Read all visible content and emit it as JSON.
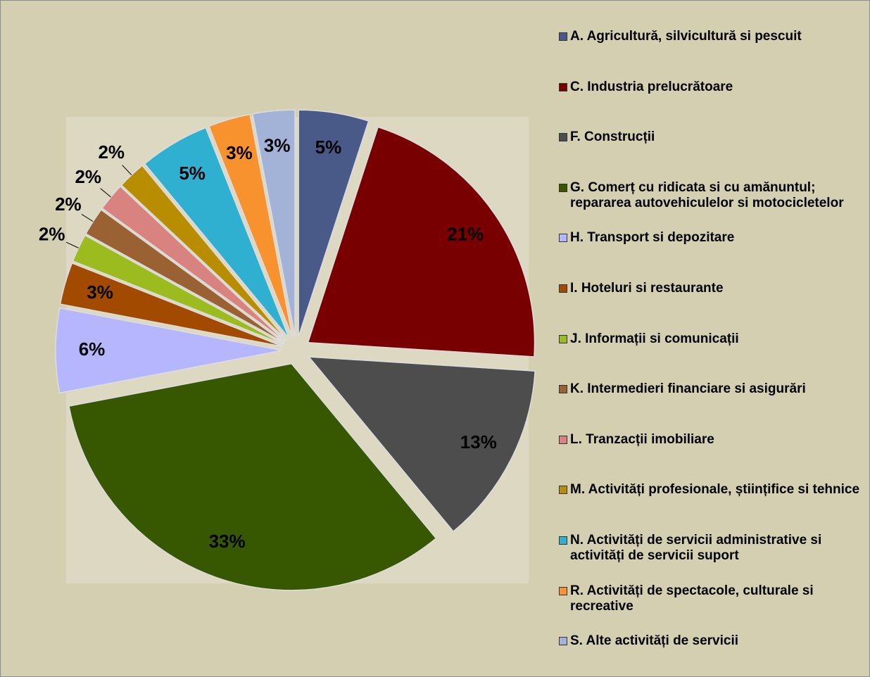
{
  "chart_data": {
    "type": "pie",
    "categories": [
      "A. Agricultură, silvicultură si pescuit",
      "C. Industria prelucrătoare",
      "F. Construcții",
      "G. Comerț cu ridicata si cu amănuntul; repararea autovehiculelor si motocicletelor",
      "H. Transport si depozitare",
      "I. Hoteluri si restaurante",
      "J. Informații si comunicații",
      "K. Intermedieri financiare si asigurări",
      "L. Tranzacții imobiliare",
      "M. Activități profesionale, științifice si tehnice",
      "N. Activități de servicii administrative si activități de servicii suport",
      "R. Activități de spectacole, culturale si recreative",
      "S. Alte activități de servicii"
    ],
    "values": [
      5,
      21,
      13,
      33,
      6,
      3,
      2,
      2,
      2,
      2,
      5,
      3,
      3
    ],
    "value_labels": [
      "5%",
      "21%",
      "13%",
      "33%",
      "6%",
      "3%",
      "2%",
      "2%",
      "2%",
      "2%",
      "5%",
      "3%",
      "3%"
    ],
    "colors": [
      "#4a5a88",
      "#780000",
      "#4d4d4d",
      "#375800",
      "#b6b6fe",
      "#a24a00",
      "#9cbb1e",
      "#9a6232",
      "#d98380",
      "#b88e00",
      "#2fb0d0",
      "#f8922e",
      "#a3b3d8"
    ],
    "legend": "right"
  }
}
